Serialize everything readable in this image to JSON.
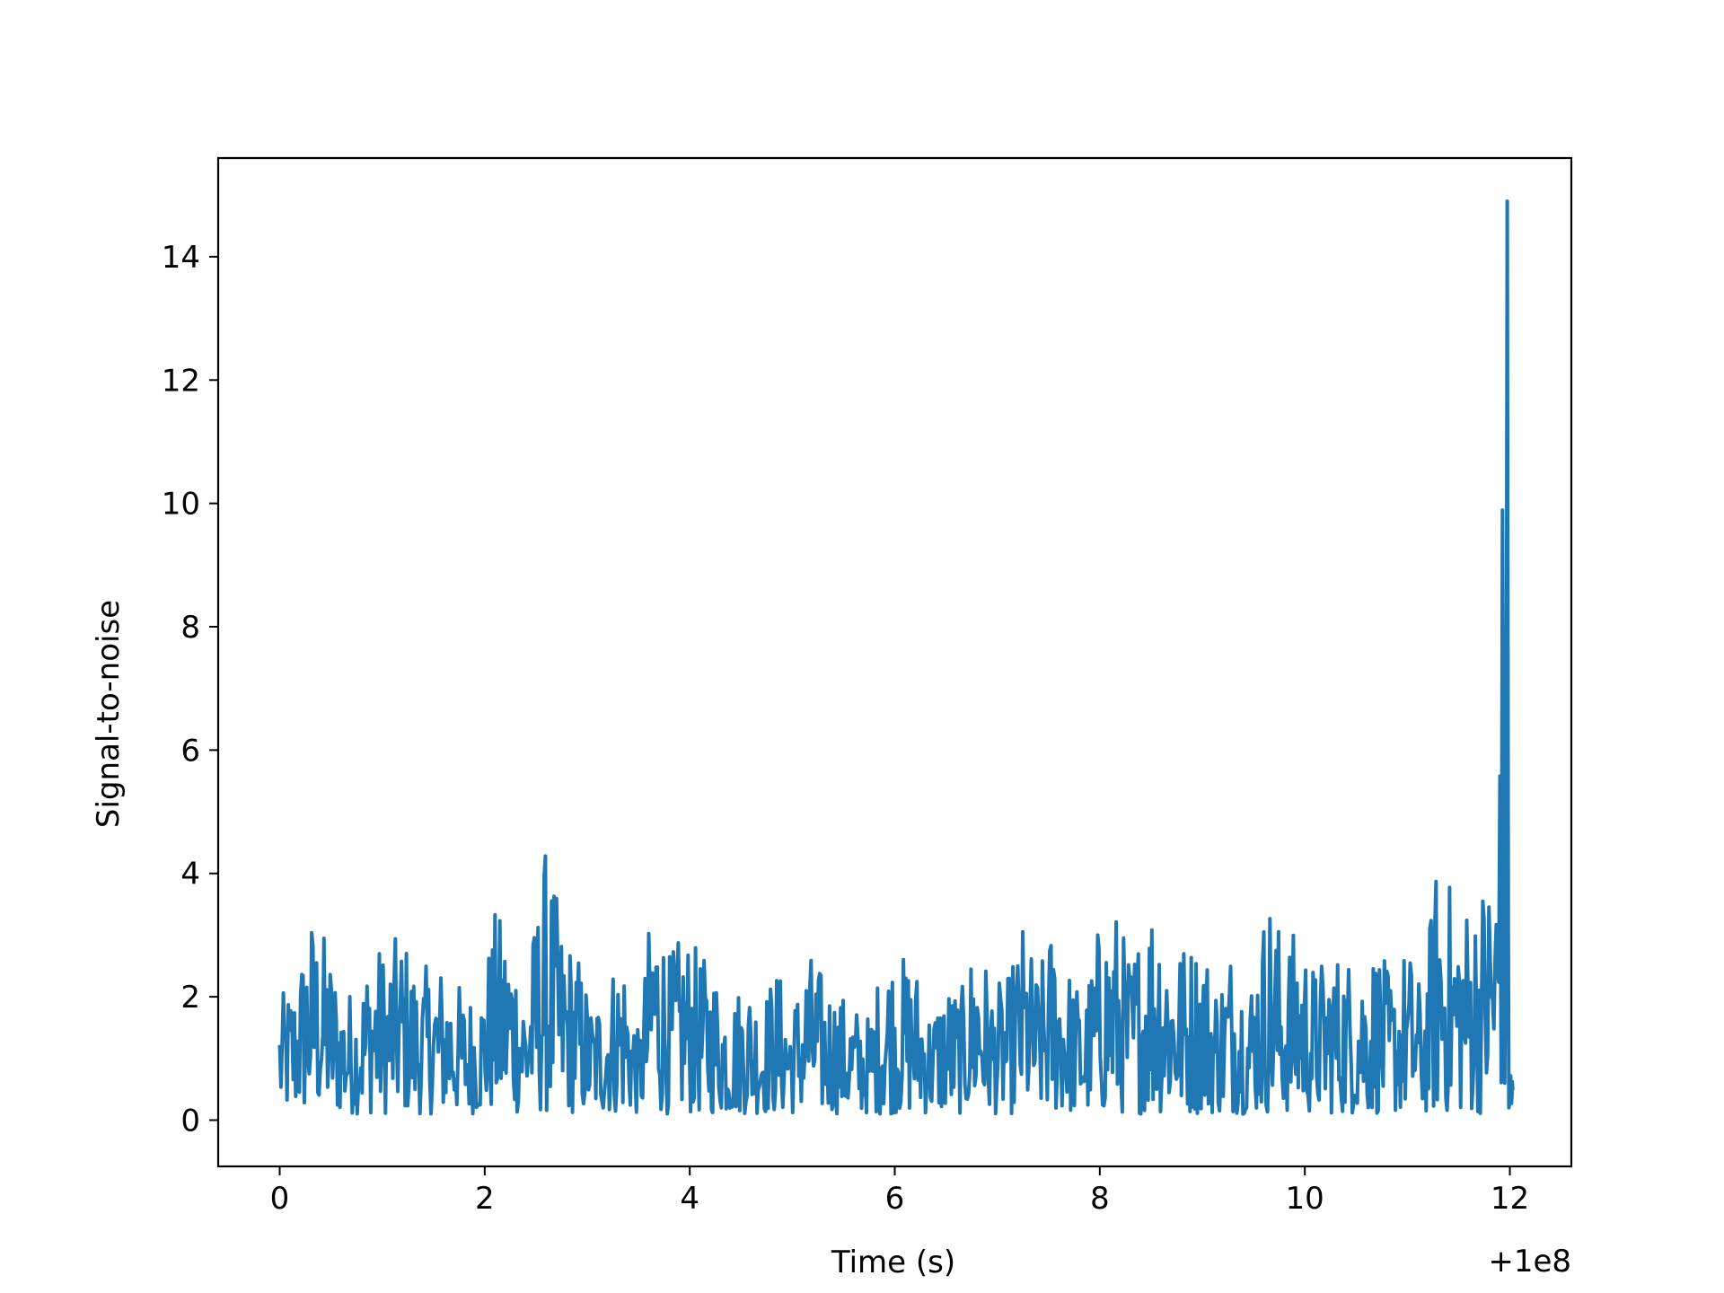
{
  "chart_data": {
    "type": "line",
    "title": "",
    "xlabel": "Time (s)",
    "ylabel": "Signal-to-noise",
    "x_offset_label": "+1e8",
    "xlim": [
      -0.6,
      12.6
    ],
    "ylim": [
      -0.75,
      15.6
    ],
    "xticks": [
      0,
      2,
      4,
      6,
      8,
      10,
      12
    ],
    "yticks": [
      0,
      2,
      4,
      6,
      8,
      10,
      12,
      14
    ],
    "grid": false,
    "legend": "none",
    "color": "#1f77b4",
    "series": [
      {
        "x": [
          0,
          0.15,
          0.3,
          0.45,
          0.6,
          0.75,
          0.9,
          1.05,
          1.2,
          1.35,
          1.5,
          1.65,
          1.8,
          1.95,
          2.1,
          2.25,
          2.4,
          2.6,
          2.75,
          2.9,
          3.05,
          3.2,
          3.35,
          3.5,
          3.65,
          3.8,
          3.95,
          4.1,
          4.25,
          4.4,
          4.55,
          4.7,
          4.85,
          5.0,
          5.15,
          5.3,
          5.45,
          5.6,
          5.75,
          5.9,
          6.05,
          6.2,
          6.35,
          6.5,
          6.65,
          6.8,
          6.95,
          7.1,
          7.25,
          7.4,
          7.55,
          7.7,
          7.85,
          8.0,
          8.15,
          8.3,
          8.55,
          8.7,
          8.85,
          9.0,
          9.15,
          9.3,
          9.45,
          9.65,
          9.8,
          9.95,
          10.1,
          10.25,
          10.4,
          10.55,
          10.7,
          10.85,
          11.0,
          11.15,
          11.3,
          11.45,
          11.6,
          11.75,
          11.9,
          12.0
        ],
        "y": [
          1.9,
          2.2,
          3.3,
          2.9,
          2.1,
          2.0,
          2.8,
          2.7,
          3.0,
          2.3,
          2.5,
          2.4,
          2.0,
          2.0,
          3.3,
          3.1,
          2.2,
          4.4,
          3.1,
          2.7,
          1.8,
          2.3,
          2.8,
          1.3,
          3.9,
          2.6,
          3.0,
          2.6,
          2.4,
          1.9,
          2.3,
          1.9,
          2.4,
          1.8,
          2.7,
          2.3,
          2.0,
          1.8,
          1.6,
          2.7,
          2.6,
          2.5,
          1.7,
          2.2,
          2.0,
          3.1,
          2.1,
          2.2,
          3.1,
          2.3,
          3.2,
          2.4,
          1.9,
          3.2,
          3.4,
          2.6,
          3.9,
          2.9,
          2.8,
          2.9,
          2.2,
          2.9,
          2.1,
          3.7,
          2.8,
          3.1,
          2.4,
          2.7,
          2.6,
          2.6,
          2.8,
          2.2,
          2.8,
          2.0,
          4.4,
          3.6,
          3.5,
          3.9,
          14.9,
          0.3
        ]
      }
    ]
  }
}
